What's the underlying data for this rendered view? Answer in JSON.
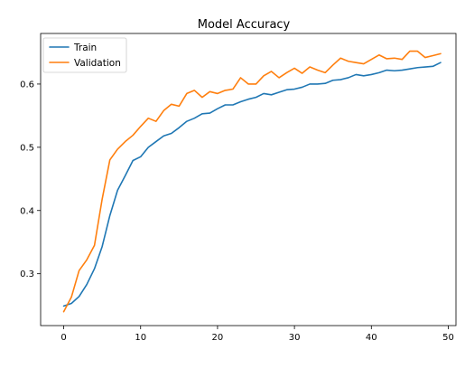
{
  "chart_data": {
    "type": "line",
    "title": "Model Accuracy",
    "xlabel": "",
    "ylabel": "",
    "xlim": [
      -3,
      51
    ],
    "ylim": [
      0.218,
      0.68
    ],
    "xticks": [
      0,
      10,
      20,
      30,
      40,
      50
    ],
    "xtick_labels": [
      "0",
      "10",
      "20",
      "30",
      "40",
      "50"
    ],
    "yticks": [
      0.3,
      0.4,
      0.5,
      0.6
    ],
    "ytick_labels": [
      "0.3",
      "0.4",
      "0.5",
      "0.6"
    ],
    "grid": false,
    "legend_position": "upper-left",
    "x": [
      0,
      1,
      2,
      3,
      4,
      5,
      6,
      7,
      8,
      9,
      10,
      11,
      12,
      13,
      14,
      15,
      16,
      17,
      18,
      19,
      20,
      21,
      22,
      23,
      24,
      25,
      26,
      27,
      28,
      29,
      30,
      31,
      32,
      33,
      34,
      35,
      36,
      37,
      38,
      39,
      40,
      41,
      42,
      43,
      44,
      45,
      46,
      47,
      48,
      49
    ],
    "series": [
      {
        "name": "Train",
        "color": "#1f77b4",
        "values": [
          0.249,
          0.253,
          0.264,
          0.283,
          0.308,
          0.343,
          0.392,
          0.432,
          0.455,
          0.479,
          0.485,
          0.5,
          0.509,
          0.518,
          0.522,
          0.531,
          0.541,
          0.546,
          0.553,
          0.554,
          0.561,
          0.567,
          0.567,
          0.572,
          0.576,
          0.579,
          0.585,
          0.583,
          0.587,
          0.591,
          0.592,
          0.595,
          0.6,
          0.6,
          0.601,
          0.606,
          0.607,
          0.61,
          0.615,
          0.613,
          0.615,
          0.618,
          0.622,
          0.621,
          0.622,
          0.624,
          0.626,
          0.627,
          0.628,
          0.634
        ]
      },
      {
        "name": "Validation",
        "color": "#ff7f0e",
        "values": [
          0.24,
          0.263,
          0.305,
          0.322,
          0.345,
          0.418,
          0.48,
          0.497,
          0.509,
          0.519,
          0.533,
          0.546,
          0.541,
          0.558,
          0.568,
          0.565,
          0.585,
          0.59,
          0.579,
          0.588,
          0.585,
          0.59,
          0.592,
          0.61,
          0.6,
          0.6,
          0.613,
          0.62,
          0.61,
          0.618,
          0.625,
          0.617,
          0.627,
          0.622,
          0.618,
          0.63,
          0.641,
          0.636,
          0.634,
          0.632,
          0.639,
          0.646,
          0.64,
          0.641,
          0.639,
          0.652,
          0.652,
          0.642,
          0.645,
          0.648
        ]
      }
    ]
  }
}
